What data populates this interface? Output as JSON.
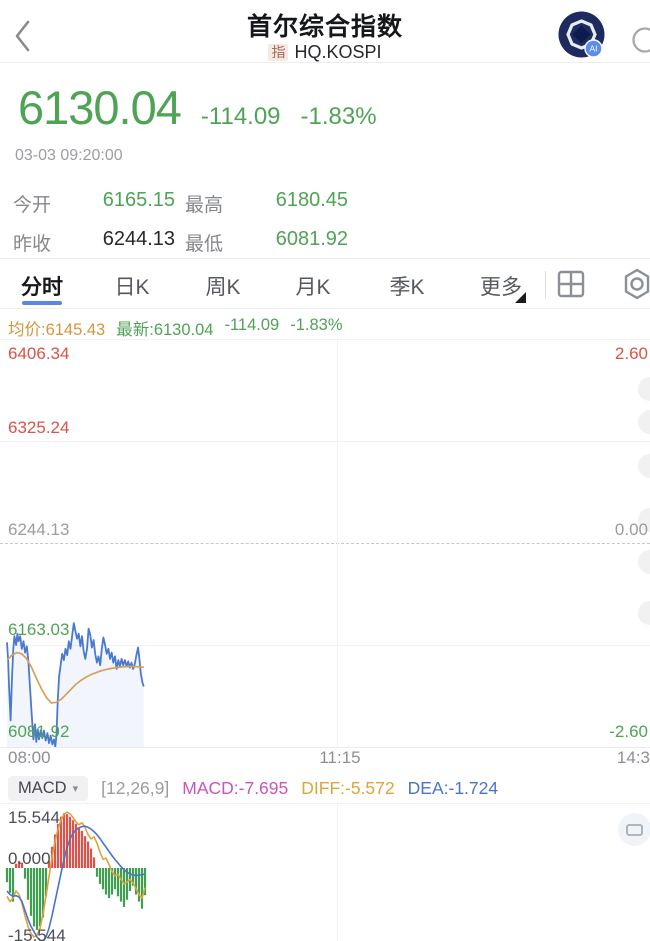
{
  "header": {
    "title": "首尔综合指数",
    "type_badge": "指",
    "symbol": "HQ.KOSPI",
    "ai_badge": "AI"
  },
  "quote": {
    "price": "6130.04",
    "change": "-114.09",
    "change_pct": "-1.83%",
    "timestamp": "03-03 09:20:00",
    "stats": [
      {
        "label": "今开",
        "value": "6165.15",
        "tone": "green"
      },
      {
        "label": "最高",
        "value": "6180.45",
        "tone": "green"
      },
      {
        "label": "昨收",
        "value": "6244.13",
        "tone": "dark"
      },
      {
        "label": "最低",
        "value": "6081.92",
        "tone": "green"
      }
    ]
  },
  "tabs": {
    "items": [
      "分时",
      "日K",
      "周K",
      "月K",
      "季K",
      "更多"
    ],
    "active_index": 0
  },
  "legend": {
    "avg": "均价:6145.43",
    "last": "最新:6130.04",
    "change": "-114.09",
    "pct": "-1.83%"
  },
  "main_chart_axis": {
    "left": [
      "6406.34",
      "6325.24",
      "6244.13",
      "6163.03",
      "6081.92"
    ],
    "right": [
      "2.60",
      "0.00",
      "-2.60"
    ],
    "time": [
      "08:00",
      "11:15",
      "14:3"
    ]
  },
  "macd_bar": {
    "selector": "MACD",
    "caret": "▾",
    "params": "[12,26,9]",
    "macd": "MACD:-7.695",
    "diff": "DIFF:-5.572",
    "dea": "DEA:-1.724"
  },
  "macd_axis": {
    "top": "15.544",
    "zero": "0.000",
    "bottom": "-15.544"
  },
  "colors": {
    "up_red": "#dd5147",
    "down_green": "#4fa355",
    "price_line": "#4b79cf",
    "avg_line": "#d6a156",
    "diff_orange": "#dca43f",
    "dea_blue": "#4a74c9",
    "hist_red": "#e0514a",
    "hist_green": "#3f9e50",
    "tab_accent": "#5b86e8"
  },
  "chart_data": [
    {
      "type": "line",
      "name": "intraday-price",
      "x_minutes_total": 390,
      "x_labels": [
        "08:00",
        "11:15",
        "14:3"
      ],
      "y_top": 6406.34,
      "y_bottom": 6081.92,
      "prev_close": 6244.13,
      "pct_labels": [
        2.6,
        0.0,
        -2.6
      ],
      "open": 6165.15,
      "high": 6180.45,
      "low": 6081.92,
      "last": 6130.04,
      "avg_last": 6145.43,
      "series": [
        {
          "name": "price",
          "points": [
            [
              0,
              6165.15
            ],
            [
              0.7,
              6150
            ],
            [
              1.2,
              6131
            ],
            [
              2.2,
              6103
            ],
            [
              3,
              6135
            ],
            [
              3.8,
              6160
            ],
            [
              4.5,
              6170
            ],
            [
              5.5,
              6163
            ],
            [
              6.3,
              6172
            ],
            [
              7,
              6166
            ],
            [
              8,
              6170
            ],
            [
              9,
              6160
            ],
            [
              10,
              6166
            ],
            [
              11,
              6157
            ],
            [
              12,
              6162
            ],
            [
              13,
              6150
            ],
            [
              14,
              6128
            ],
            [
              15,
              6108
            ],
            [
              16,
              6088
            ],
            [
              17,
              6100
            ],
            [
              17.8,
              6086
            ],
            [
              18.6,
              6096
            ],
            [
              19.4,
              6088
            ],
            [
              20.4,
              6095
            ],
            [
              21.4,
              6089
            ],
            [
              22.4,
              6095
            ],
            [
              23.5,
              6087
            ],
            [
              24.5,
              6093
            ],
            [
              25.5,
              6085
            ],
            [
              26.5,
              6091
            ],
            [
              27.5,
              6084
            ],
            [
              28.5,
              6088
            ],
            [
              29.3,
              6081.92
            ],
            [
              30,
              6092
            ],
            [
              30.8,
              6120
            ],
            [
              31.6,
              6138
            ],
            [
              32.5,
              6147
            ],
            [
              33.5,
              6156
            ],
            [
              34.5,
              6151
            ],
            [
              35.5,
              6160
            ],
            [
              36.5,
              6155
            ],
            [
              37.5,
              6166
            ],
            [
              38.5,
              6160
            ],
            [
              39.5,
              6170
            ],
            [
              40.5,
              6180.45
            ],
            [
              41.5,
              6174
            ],
            [
              42.5,
              6168
            ],
            [
              43.5,
              6172
            ],
            [
              44.5,
              6162
            ],
            [
              45.5,
              6170
            ],
            [
              46.5,
              6158
            ],
            [
              47.5,
              6152
            ],
            [
              48.5,
              6160
            ],
            [
              49.5,
              6176
            ],
            [
              50.5,
              6171
            ],
            [
              51.5,
              6161
            ],
            [
              52.5,
              6167
            ],
            [
              53.5,
              6156
            ],
            [
              54.5,
              6149
            ],
            [
              55.5,
              6154
            ],
            [
              56.5,
              6147
            ],
            [
              57.5,
              6160
            ],
            [
              58.5,
              6169
            ],
            [
              59.5,
              6163
            ],
            [
              60.5,
              6156
            ],
            [
              61.5,
              6160
            ],
            [
              62.5,
              6152
            ],
            [
              63.5,
              6157
            ],
            [
              64.5,
              6149
            ],
            [
              65.5,
              6154
            ],
            [
              66.5,
              6144
            ],
            [
              67.5,
              6151
            ],
            [
              68.5,
              6146
            ],
            [
              69.5,
              6152
            ],
            [
              70.5,
              6147
            ],
            [
              71.5,
              6151
            ],
            [
              72.5,
              6146
            ],
            [
              73.5,
              6150
            ],
            [
              74.5,
              6145
            ],
            [
              75.5,
              6149
            ],
            [
              76.5,
              6144
            ],
            [
              77.5,
              6148
            ],
            [
              78.5,
              6155
            ],
            [
              79.5,
              6161
            ],
            [
              80.3,
              6152
            ],
            [
              81.2,
              6140
            ],
            [
              82.2,
              6133
            ],
            [
              83,
              6130.04
            ]
          ]
        },
        {
          "name": "avg_price",
          "points": [
            [
              0,
              6151
            ],
            [
              3,
              6155
            ],
            [
              6,
              6157
            ],
            [
              9,
              6156
            ],
            [
              12,
              6152
            ],
            [
              15,
              6145
            ],
            [
              18,
              6136
            ],
            [
              21,
              6128
            ],
            [
              24,
              6121
            ],
            [
              27,
              6117
            ],
            [
              30,
              6117.5
            ],
            [
              33,
              6120
            ],
            [
              36,
              6124
            ],
            [
              39,
              6128
            ],
            [
              42,
              6132
            ],
            [
              45,
              6135
            ],
            [
              48,
              6137.5
            ],
            [
              51,
              6139.5
            ],
            [
              54,
              6141
            ],
            [
              57,
              6142.5
            ],
            [
              60,
              6143.5
            ],
            [
              63,
              6144.3
            ],
            [
              66,
              6145
            ],
            [
              69,
              6145.5
            ],
            [
              72,
              6145.8
            ],
            [
              75,
              6146
            ],
            [
              78,
              6145.8
            ],
            [
              81,
              6145.5
            ],
            [
              83,
              6145.43
            ]
          ]
        }
      ]
    },
    {
      "type": "bar",
      "name": "macd",
      "params": [
        12,
        26,
        9
      ],
      "y_max": 15.544,
      "y_min": -15.544,
      "last": {
        "macd": -7.695,
        "diff": -5.572,
        "dea": -1.724
      },
      "histogram": [
        -4,
        -7,
        -9.5,
        1.2,
        2,
        1.5,
        -3,
        -9,
        -13.5,
        -16.5,
        -17.5,
        -16.5,
        -14,
        -8,
        2,
        6,
        9.5,
        12.5,
        14.5,
        15.5,
        15.2,
        14.5,
        13.5,
        12.5,
        11.5,
        10.5,
        9,
        7.5,
        5.5,
        3,
        -2.5,
        -4.5,
        -6,
        -7.5,
        -8.5,
        -7.5,
        -6,
        -8,
        -9.5,
        -11,
        -9,
        -6.5,
        -5,
        -7.5,
        -9.5,
        -11.5,
        -7.695
      ],
      "diff": [
        -8,
        -9.5,
        -8.5,
        -6.5,
        -7.5,
        -10,
        -13.5,
        -16.5,
        -18.5,
        -19.5,
        -19,
        -17,
        -13,
        -8,
        -2.5,
        3,
        7.5,
        11,
        13.5,
        15.2,
        15.8,
        15.3,
        14.3,
        13,
        12.2,
        12.8,
        11.5,
        9.5,
        8.2,
        8.8,
        7,
        4.5,
        2.5,
        2.8,
        1,
        -1,
        -2.2,
        -1.8,
        -3.2,
        -4.5,
        -4,
        -3.2,
        -4.2,
        -5.8,
        -7.5,
        -8.5,
        -5.572
      ],
      "dea": [
        -6.5,
        -7.5,
        -8,
        -7.8,
        -8.2,
        -9.5,
        -12,
        -14.5,
        -16.5,
        -18,
        -19.5,
        -20.5,
        -20.8,
        -19.5,
        -17,
        -13.5,
        -9.5,
        -5.5,
        -1.5,
        2.5,
        5.8,
        8.2,
        9.8,
        10.8,
        11.4,
        11.7,
        11.8,
        11.5,
        11,
        10.3,
        9.4,
        8.3,
        7.1,
        5.9,
        4.7,
        3.5,
        2.4,
        1.4,
        0.4,
        -0.5,
        -1.2,
        -1.7,
        -2,
        -2.1,
        -2,
        -1.9,
        -1.724
      ]
    }
  ]
}
